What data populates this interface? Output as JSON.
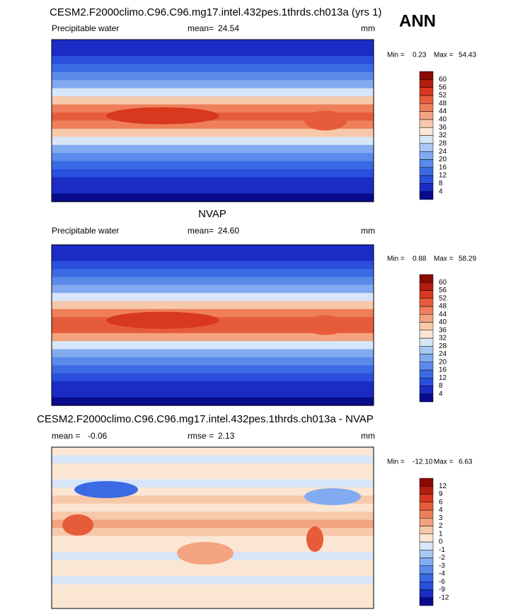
{
  "header": {
    "title": "ANN"
  },
  "panels": [
    {
      "title": "CESM2.F2000climo.C96.C96.mg17.intel.432pes.1thrds.ch013a (yrs 1)",
      "left_label": "Precipitable water",
      "mean_label": "mean=",
      "mean": "24.54",
      "units": "mm",
      "min_label": "Min =",
      "min": "0.23",
      "max_label": "Max =",
      "max": "54.43",
      "colorbar": {
        "levels": [
          4,
          8,
          12,
          16,
          20,
          24,
          28,
          32,
          36,
          40,
          44,
          48,
          52,
          56,
          60
        ],
        "colors": [
          "#0a0a8c",
          "#1a2cc4",
          "#2a4fdc",
          "#3a6ae4",
          "#5a8aea",
          "#82aaf0",
          "#a9c8f4",
          "#d7e5f8",
          "#fbe6d4",
          "#f7c8aa",
          "#f3a380",
          "#ee7f5a",
          "#e65c3a",
          "#d8381e",
          "#b41c0e",
          "#8a0a04"
        ]
      }
    },
    {
      "title": "NVAP",
      "left_label": "Precipitable water",
      "mean_label": "mean=",
      "mean": "24.60",
      "units": "mm",
      "min_label": "Min =",
      "min": "0.88",
      "max_label": "Max =",
      "max": "58.29",
      "colorbar": {
        "levels": [
          4,
          8,
          12,
          16,
          20,
          24,
          28,
          32,
          36,
          40,
          44,
          48,
          52,
          56,
          60
        ],
        "colors": [
          "#0a0a8c",
          "#1a2cc4",
          "#2a4fdc",
          "#3a6ae4",
          "#5a8aea",
          "#82aaf0",
          "#a9c8f4",
          "#d7e5f8",
          "#fbe6d4",
          "#f7c8aa",
          "#f3a380",
          "#ee7f5a",
          "#e65c3a",
          "#d8381e",
          "#b41c0e",
          "#8a0a04"
        ]
      }
    },
    {
      "title": "CESM2.F2000climo.C96.C96.mg17.intel.432pes.1thrds.ch013a - NVAP",
      "left_label": "mean =",
      "left_value": "-0.06",
      "mean_label": "rmse =",
      "mean": "2.13",
      "units": "mm",
      "min_label": "Min =",
      "min": "-12.10",
      "max_label": "Max =",
      "max": "6.63",
      "colorbar": {
        "levels": [
          -12,
          -9,
          -6,
          -4,
          -3,
          -2,
          -1,
          0,
          1,
          2,
          3,
          4,
          6,
          9,
          12
        ],
        "colors": [
          "#0a0a8c",
          "#1a2cc4",
          "#2a4fdc",
          "#3a6ae4",
          "#5a8aea",
          "#82aaf0",
          "#a9c8f4",
          "#d7e5f8",
          "#fbe6d4",
          "#f7c8aa",
          "#f3a380",
          "#ee7f5a",
          "#e65c3a",
          "#d8381e",
          "#b41c0e",
          "#8a0a04"
        ]
      }
    }
  ]
}
